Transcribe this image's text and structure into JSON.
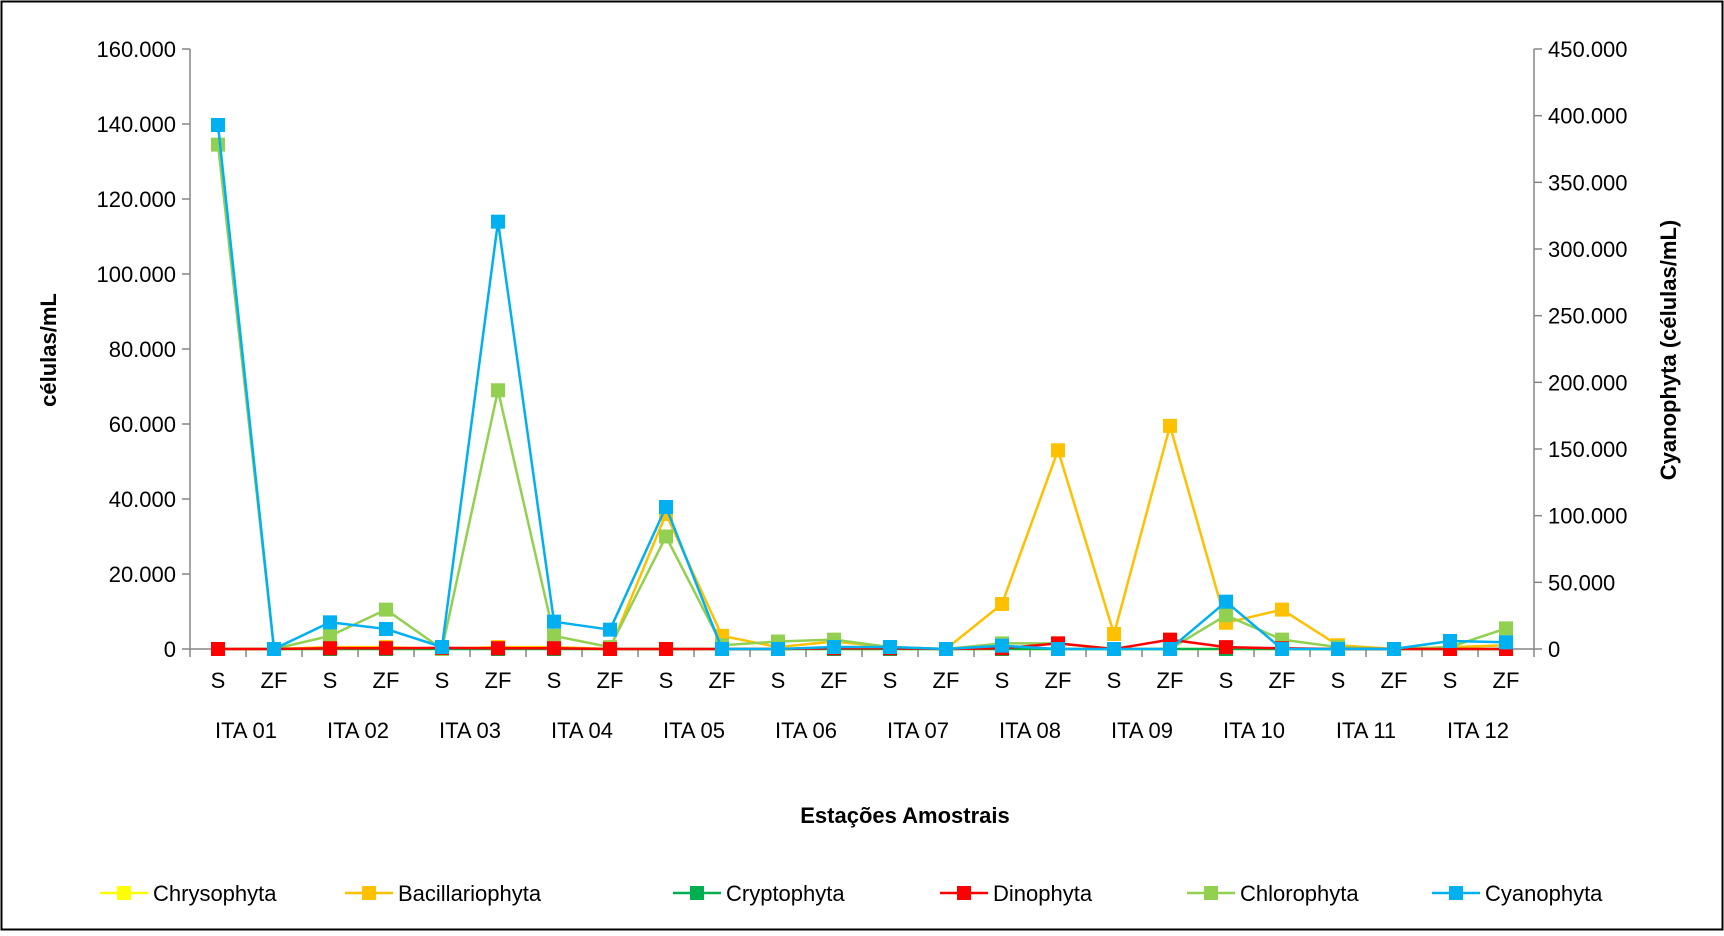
{
  "chart_data": {
    "type": "line",
    "title": "",
    "xlabel": "Estações Amostrais",
    "ylabel": "células/mL",
    "y2label": "Cyanophyta (células/mL)",
    "ylim": [
      0,
      160000
    ],
    "y2lim": [
      0,
      450000
    ],
    "y_ticks": [
      "0",
      "20.000",
      "40.000",
      "60.000",
      "80.000",
      "100.000",
      "120.000",
      "140.000",
      "160.000"
    ],
    "y2_ticks": [
      "0",
      "50.000",
      "100.000",
      "150.000",
      "200.000",
      "250.000",
      "300.000",
      "350.000",
      "400.000",
      "450.000"
    ],
    "categories": [
      "S",
      "ZF",
      "S",
      "ZF",
      "S",
      "ZF",
      "S",
      "ZF",
      "S",
      "ZF",
      "S",
      "ZF",
      "S",
      "ZF",
      "S",
      "ZF",
      "S",
      "ZF",
      "S",
      "ZF",
      "S",
      "ZF",
      "S",
      "ZF"
    ],
    "groups": [
      "ITA 01",
      "ITA 02",
      "ITA 03",
      "ITA 04",
      "ITA 05",
      "ITA 06",
      "ITA 07",
      "ITA 08",
      "ITA 09",
      "ITA 10",
      "ITA 11",
      "ITA 12"
    ],
    "legend_position": "bottom",
    "grid": false,
    "series": [
      {
        "name": "Chrysophyta",
        "color": "#FFFF00",
        "axis": "left",
        "values": [
          0,
          0,
          0,
          0,
          0,
          500,
          0,
          0,
          0,
          0,
          0,
          0,
          0,
          0,
          0,
          0,
          0,
          0,
          0,
          0,
          0,
          0,
          0,
          0
        ]
      },
      {
        "name": "Bacillariophyta",
        "color": "#FFC000",
        "axis": "left",
        "values": [
          0,
          0,
          500,
          500,
          0,
          500,
          500,
          0,
          36000,
          3500,
          500,
          2000,
          500,
          0,
          12000,
          53000,
          4000,
          59500,
          7000,
          10500,
          1000,
          0,
          500,
          1000
        ]
      },
      {
        "name": "Cryptophyta",
        "color": "#00B050",
        "axis": "left",
        "values": [
          0,
          0,
          0,
          0,
          0,
          0,
          0,
          0,
          0,
          0,
          0,
          0,
          0,
          0,
          0,
          0,
          0,
          0,
          0,
          0,
          0,
          0,
          0,
          0
        ]
      },
      {
        "name": "Dinophyta",
        "color": "#FF0000",
        "axis": "left",
        "values": [
          0,
          0,
          200,
          200,
          300,
          200,
          200,
          0,
          0,
          0,
          0,
          200,
          200,
          0,
          200,
          1500,
          0,
          2500,
          500,
          200,
          0,
          0,
          0,
          0
        ]
      },
      {
        "name": "Chlorophyta",
        "color": "#92D050",
        "axis": "left",
        "values": [
          134500,
          0,
          3500,
          10500,
          0,
          69000,
          3500,
          500,
          30000,
          1000,
          2000,
          2500,
          500,
          0,
          1500,
          1500,
          0,
          0,
          9000,
          2500,
          500,
          0,
          500,
          5500
        ]
      },
      {
        "name": "Cyanophyta",
        "color": "#00B0F0",
        "axis": "right",
        "values": [
          393000,
          0,
          20000,
          15000,
          1500,
          320500,
          20500,
          14500,
          106500,
          0,
          0,
          1500,
          1500,
          0,
          2500,
          0,
          0,
          0,
          35500,
          0,
          0,
          0,
          6000,
          5000
        ]
      }
    ]
  }
}
